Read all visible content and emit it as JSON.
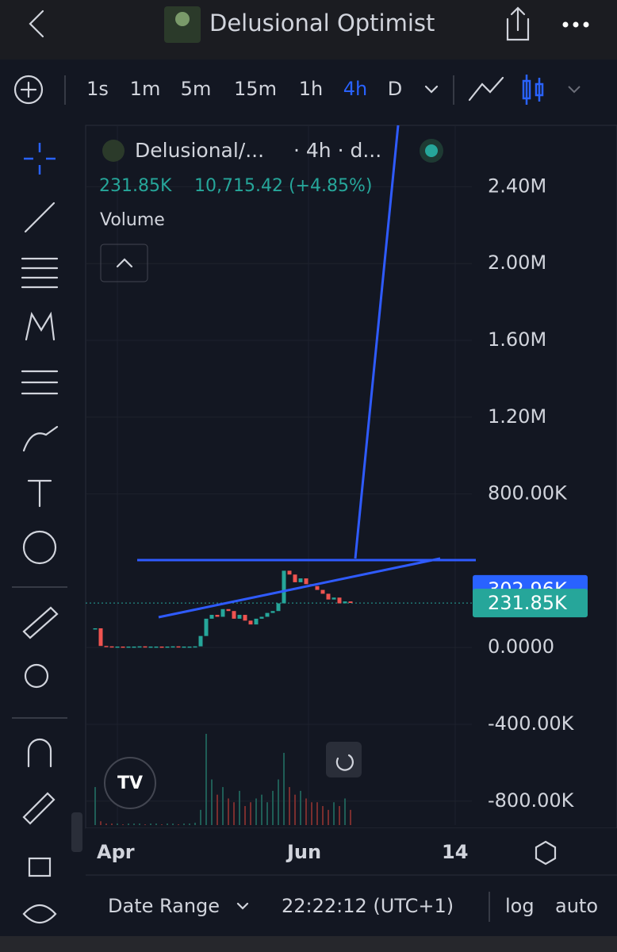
{
  "header": {
    "title": "Delusional Optimist"
  },
  "toolbar": {
    "intervals": [
      "1s",
      "1m",
      "5m",
      "15m",
      "1h",
      "4h",
      "D"
    ],
    "active": 5
  },
  "legend": {
    "symbol": "Delusional/...",
    "meta": "· 4h · d...",
    "last": "231.85K",
    "change": "10,715.42 (+4.85%)",
    "indicator": "Volume"
  },
  "chart": {
    "yticks": [
      {
        "value": 2400000,
        "label": "2.40M"
      },
      {
        "value": 2000000,
        "label": "2.00M"
      },
      {
        "value": 1600000,
        "label": "1.60M"
      },
      {
        "value": 1200000,
        "label": "1.20M"
      },
      {
        "value": 800000,
        "label": "800.00K"
      },
      {
        "value": 0,
        "label": "0.0000"
      },
      {
        "value": -400000,
        "label": "-400.00K"
      },
      {
        "value": -800000,
        "label": "-800.00K"
      }
    ],
    "ylim": [
      -925000,
      2720000
    ],
    "closes": [
      100000,
      8000,
      6000,
      5000,
      5000,
      4000,
      5000,
      5000,
      6000,
      5000,
      5000,
      5000,
      4000,
      5000,
      6000,
      5000,
      5000,
      5000,
      6000,
      60000,
      150000,
      170000,
      160000,
      200000,
      190000,
      150000,
      170000,
      140000,
      120000,
      150000,
      160000,
      180000,
      190000,
      230000,
      400000,
      380000,
      340000,
      360000,
      330000,
      320000,
      300000,
      280000,
      250000,
      260000,
      230000,
      240000,
      231850
    ],
    "volume": [
      50,
      5,
      2,
      2,
      2,
      1,
      2,
      2,
      2,
      1,
      2,
      2,
      1,
      2,
      2,
      1,
      2,
      2,
      3,
      20,
      120,
      60,
      40,
      50,
      35,
      30,
      45,
      25,
      30,
      35,
      40,
      30,
      45,
      60,
      95,
      50,
      40,
      45,
      35,
      30,
      30,
      25,
      20,
      30,
      25,
      35,
      20
    ],
    "price_badges": [
      {
        "value": 302960,
        "label": "302.96K",
        "color": "#2962ff"
      },
      {
        "value": 231850,
        "label": "231.85K",
        "color": "#26a69a"
      }
    ],
    "xlabels": [
      "Apr",
      "Jun",
      "14"
    ]
  },
  "footer": {
    "range": "Date Range",
    "time": "22:22:12 (UTC+1)",
    "log": "log",
    "auto": "auto"
  }
}
